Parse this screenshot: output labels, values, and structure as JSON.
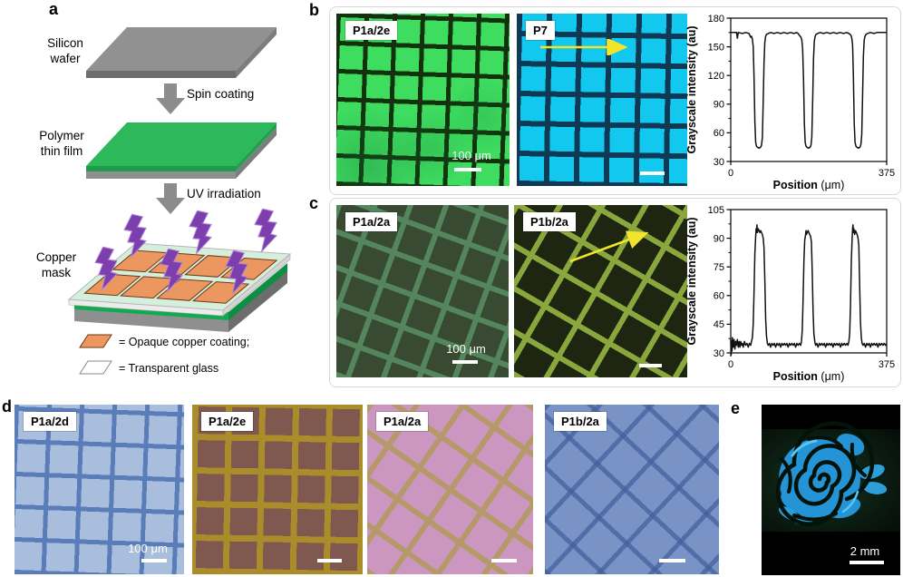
{
  "panels": {
    "a": {
      "letter": "a",
      "steps": {
        "silicon_wafer_line1": "Silicon",
        "silicon_wafer_line2": "wafer",
        "spin_coating": "Spin coating",
        "polymer_line1": "Polymer",
        "polymer_line2": "thin film",
        "uv_irradiation": "UV irradiation",
        "copper_line1": "Copper",
        "copper_line2": "mask"
      },
      "legend": {
        "copper": "= Opaque copper coating;",
        "glass": "= Transparent glass"
      },
      "colors": {
        "wafer_gray": "#8f8f8f",
        "film_green": "#2eb85c",
        "copper_orange": "#ec9760",
        "glass_green": "#d6efdd",
        "uv_purple": "#7c3fad"
      }
    },
    "b": {
      "letter": "b",
      "scale_label": "100 μm"
    },
    "c": {
      "letter": "c",
      "scale_label": "100 μm"
    },
    "d": {
      "letter": "d",
      "scale_label": "100 μm"
    },
    "e": {
      "letter": "e",
      "scale_label": "2 mm",
      "rose_blue": "#2594d6"
    }
  },
  "micrographs": {
    "b1": {
      "label": "P1a/2e",
      "bg": "#3edd60",
      "line": "#11320d",
      "pitch": 31,
      "lw": 5,
      "angle": 2
    },
    "b2": {
      "label": "P7",
      "bg": "#12c8ee",
      "line": "#0e3a55",
      "pitch": 33,
      "lw": 6,
      "angle": 1
    },
    "c1": {
      "label": "P1a/2a",
      "bg": "#384a31",
      "line": "#55855c",
      "pitch": 37,
      "lw": 6,
      "angle": 20
    },
    "c2": {
      "label": "P1b/2a",
      "bg": "#1e2612",
      "line": "#8aa73e",
      "pitch": 41,
      "lw": 6,
      "angle": 30
    },
    "d1": {
      "label": "P1a/2d",
      "bg": "#a9bedd",
      "line": "#5a7cb8",
      "pitch": 36,
      "lw": 5,
      "angle": 2
    },
    "d2": {
      "label": "P1a/2e",
      "bg": "#7f5850",
      "line": "#ab8c2a",
      "pitch": 37,
      "lw": 7,
      "angle": 1
    },
    "d3": {
      "label": "P1a/2a",
      "bg": "#cb97c0",
      "line": "#b6996a",
      "pitch": 42,
      "lw": 6,
      "angle": 35
    },
    "d4": {
      "label": "P1b/2a",
      "bg": "#7a93c7",
      "line": "rgba(67,97,158,0.75)",
      "pitch": 42,
      "lw": 5,
      "angle": 43
    }
  },
  "chart_data": [
    {
      "type": "line",
      "panel": "b",
      "title": "",
      "xlabel": "Position (μm)",
      "ylabel": "Grayscale intensity (au)",
      "xlim": [
        0,
        375
      ],
      "ylim": [
        30,
        180
      ],
      "yticks": [
        30,
        60,
        90,
        120,
        150,
        180
      ],
      "xticks": [
        0,
        375
      ],
      "grid": false,
      "line_color": "#111111",
      "points": [
        [
          0,
          165
        ],
        [
          10,
          165
        ],
        [
          14,
          165
        ],
        [
          16,
          159
        ],
        [
          18,
          165
        ],
        [
          28,
          164
        ],
        [
          36,
          165
        ],
        [
          44,
          164
        ],
        [
          46,
          162
        ],
        [
          48,
          160
        ],
        [
          50,
          161
        ],
        [
          52,
          158
        ],
        [
          54,
          150
        ],
        [
          56,
          118
        ],
        [
          58,
          72
        ],
        [
          60,
          50
        ],
        [
          62,
          46
        ],
        [
          64,
          45
        ],
        [
          68,
          44
        ],
        [
          72,
          45
        ],
        [
          74,
          47
        ],
        [
          76,
          55
        ],
        [
          78,
          92
        ],
        [
          80,
          133
        ],
        [
          82,
          155
        ],
        [
          84,
          161
        ],
        [
          86,
          163
        ],
        [
          90,
          164
        ],
        [
          96,
          165
        ],
        [
          104,
          164
        ],
        [
          112,
          165
        ],
        [
          120,
          164
        ],
        [
          128,
          165
        ],
        [
          136,
          164
        ],
        [
          144,
          165
        ],
        [
          152,
          164
        ],
        [
          158,
          165
        ],
        [
          162,
          164
        ],
        [
          165,
          162
        ],
        [
          167,
          161
        ],
        [
          169,
          160
        ],
        [
          171,
          157
        ],
        [
          173,
          148
        ],
        [
          175,
          115
        ],
        [
          177,
          70
        ],
        [
          179,
          50
        ],
        [
          181,
          46
        ],
        [
          183,
          45
        ],
        [
          187,
          44
        ],
        [
          191,
          45
        ],
        [
          193,
          47
        ],
        [
          195,
          55
        ],
        [
          197,
          95
        ],
        [
          199,
          138
        ],
        [
          201,
          156
        ],
        [
          203,
          161
        ],
        [
          205,
          163
        ],
        [
          209,
          164
        ],
        [
          215,
          165
        ],
        [
          223,
          164
        ],
        [
          231,
          165
        ],
        [
          239,
          164
        ],
        [
          247,
          165
        ],
        [
          255,
          164
        ],
        [
          263,
          165
        ],
        [
          271,
          164
        ],
        [
          279,
          165
        ],
        [
          284,
          164
        ],
        [
          287,
          163
        ],
        [
          289,
          162
        ],
        [
          291,
          159
        ],
        [
          293,
          152
        ],
        [
          295,
          118
        ],
        [
          297,
          70
        ],
        [
          299,
          50
        ],
        [
          301,
          46
        ],
        [
          303,
          45
        ],
        [
          307,
          44
        ],
        [
          311,
          45
        ],
        [
          313,
          48
        ],
        [
          315,
          58
        ],
        [
          317,
          98
        ],
        [
          319,
          140
        ],
        [
          321,
          157
        ],
        [
          323,
          161
        ],
        [
          325,
          163
        ],
        [
          329,
          164
        ],
        [
          336,
          165
        ],
        [
          344,
          164
        ],
        [
          352,
          165
        ],
        [
          360,
          165
        ],
        [
          368,
          165
        ],
        [
          375,
          165
        ]
      ]
    },
    {
      "type": "line",
      "panel": "c",
      "title": "",
      "xlabel": "Position (μm)",
      "ylabel": "Grayscale intensity (au)",
      "xlim": [
        0,
        375
      ],
      "ylim": [
        30,
        105
      ],
      "yticks": [
        30,
        45,
        60,
        75,
        90,
        105
      ],
      "xticks": [
        0,
        375
      ],
      "grid": false,
      "line_color": "#111111",
      "points": [
        [
          0,
          37
        ],
        [
          1,
          29
        ],
        [
          2,
          36
        ],
        [
          3,
          31
        ],
        [
          4,
          38
        ],
        [
          6,
          33
        ],
        [
          8,
          37
        ],
        [
          10,
          32
        ],
        [
          12,
          36
        ],
        [
          14,
          34
        ],
        [
          16,
          37
        ],
        [
          18,
          33
        ],
        [
          20,
          36
        ],
        [
          22,
          33
        ],
        [
          24,
          36
        ],
        [
          26,
          34
        ],
        [
          28,
          35
        ],
        [
          30,
          33
        ],
        [
          33,
          36
        ],
        [
          36,
          34
        ],
        [
          39,
          35
        ],
        [
          42,
          33
        ],
        [
          45,
          35
        ],
        [
          48,
          34
        ],
        [
          50,
          36
        ],
        [
          52,
          38
        ],
        [
          54,
          45
        ],
        [
          56,
          62
        ],
        [
          58,
          82
        ],
        [
          60,
          91
        ],
        [
          61,
          95
        ],
        [
          62,
          93
        ],
        [
          63,
          97
        ],
        [
          64,
          93
        ],
        [
          66,
          95
        ],
        [
          68,
          94
        ],
        [
          70,
          93
        ],
        [
          72,
          94
        ],
        [
          74,
          93
        ],
        [
          76,
          92
        ],
        [
          78,
          90
        ],
        [
          80,
          85
        ],
        [
          82,
          68
        ],
        [
          84,
          48
        ],
        [
          86,
          39
        ],
        [
          88,
          35
        ],
        [
          90,
          34
        ],
        [
          93,
          35
        ],
        [
          96,
          33
        ],
        [
          99,
          35
        ],
        [
          102,
          34
        ],
        [
          105,
          35
        ],
        [
          108,
          33
        ],
        [
          111,
          35
        ],
        [
          114,
          34
        ],
        [
          117,
          35
        ],
        [
          120,
          33
        ],
        [
          123,
          35
        ],
        [
          126,
          34
        ],
        [
          129,
          35
        ],
        [
          132,
          34
        ],
        [
          135,
          35
        ],
        [
          138,
          33
        ],
        [
          141,
          35
        ],
        [
          144,
          34
        ],
        [
          147,
          35
        ],
        [
          150,
          34
        ],
        [
          153,
          35
        ],
        [
          156,
          33
        ],
        [
          159,
          35
        ],
        [
          162,
          34
        ],
        [
          165,
          35
        ],
        [
          168,
          34
        ],
        [
          170,
          36
        ],
        [
          172,
          42
        ],
        [
          174,
          58
        ],
        [
          176,
          78
        ],
        [
          178,
          89
        ],
        [
          180,
          92
        ],
        [
          181,
          94
        ],
        [
          182,
          92
        ],
        [
          184,
          93
        ],
        [
          186,
          94
        ],
        [
          188,
          93
        ],
        [
          190,
          92
        ],
        [
          192,
          91
        ],
        [
          194,
          88
        ],
        [
          196,
          72
        ],
        [
          198,
          52
        ],
        [
          200,
          40
        ],
        [
          202,
          36
        ],
        [
          204,
          34
        ],
        [
          207,
          35
        ],
        [
          210,
          33
        ],
        [
          213,
          35
        ],
        [
          216,
          34
        ],
        [
          219,
          35
        ],
        [
          222,
          34
        ],
        [
          225,
          35
        ],
        [
          228,
          33
        ],
        [
          231,
          35
        ],
        [
          234,
          34
        ],
        [
          237,
          35
        ],
        [
          240,
          34
        ],
        [
          243,
          35
        ],
        [
          246,
          33
        ],
        [
          249,
          35
        ],
        [
          252,
          34
        ],
        [
          255,
          35
        ],
        [
          258,
          34
        ],
        [
          261,
          35
        ],
        [
          264,
          33
        ],
        [
          267,
          35
        ],
        [
          270,
          34
        ],
        [
          273,
          35
        ],
        [
          276,
          34
        ],
        [
          279,
          35
        ],
        [
          282,
          34
        ],
        [
          284,
          36
        ],
        [
          286,
          40
        ],
        [
          288,
          55
        ],
        [
          290,
          78
        ],
        [
          292,
          90
        ],
        [
          293,
          95
        ],
        [
          294,
          97
        ],
        [
          295,
          93
        ],
        [
          296,
          95
        ],
        [
          298,
          92
        ],
        [
          300,
          94
        ],
        [
          302,
          93
        ],
        [
          304,
          92
        ],
        [
          306,
          90
        ],
        [
          308,
          86
        ],
        [
          310,
          65
        ],
        [
          312,
          46
        ],
        [
          314,
          38
        ],
        [
          316,
          35
        ],
        [
          318,
          34
        ],
        [
          321,
          35
        ],
        [
          324,
          33
        ],
        [
          327,
          35
        ],
        [
          330,
          34
        ],
        [
          333,
          35
        ],
        [
          336,
          33
        ],
        [
          339,
          35
        ],
        [
          342,
          34
        ],
        [
          345,
          35
        ],
        [
          348,
          34
        ],
        [
          351,
          35
        ],
        [
          354,
          33
        ],
        [
          357,
          35
        ],
        [
          360,
          34
        ],
        [
          363,
          35
        ],
        [
          366,
          34
        ],
        [
          369,
          35
        ],
        [
          372,
          34
        ],
        [
          375,
          35
        ]
      ]
    }
  ]
}
